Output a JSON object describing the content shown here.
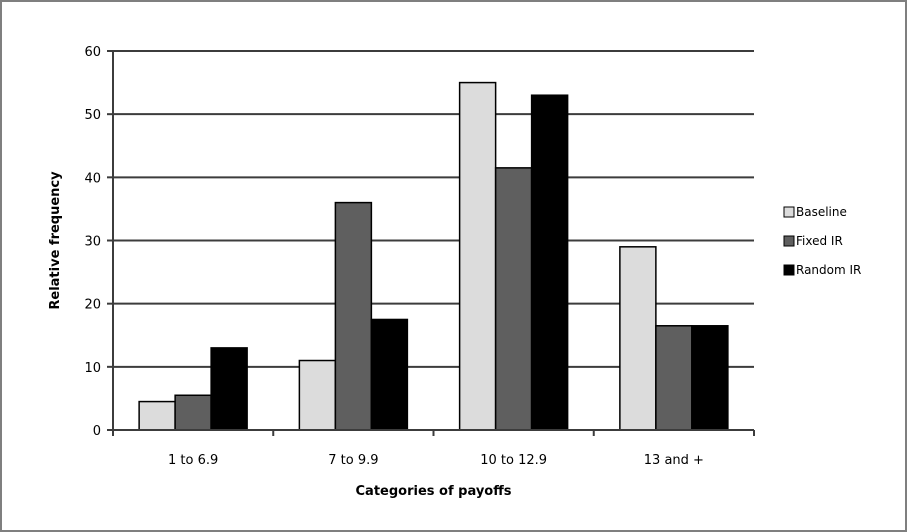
{
  "chart_data": {
    "type": "bar",
    "title": "",
    "xlabel": "Categories of payoffs",
    "ylabel": "Relative frequency",
    "ylim": [
      0,
      60
    ],
    "yticks": [
      0,
      10,
      20,
      30,
      40,
      50,
      60
    ],
    "grid": true,
    "legend_position": "right",
    "categories": [
      "1 to 6.9",
      "7 to 9.9",
      "10 to 12.9",
      "13 and +"
    ],
    "series": [
      {
        "name": "Baseline",
        "color": "#dcdcdc",
        "values": [
          4.5,
          11,
          55,
          29
        ]
      },
      {
        "name": "Fixed IR",
        "color": "#5f5f5f",
        "values": [
          5.5,
          36,
          41.5,
          16.5
        ]
      },
      {
        "name": "Random IR",
        "color": "#000000",
        "values": [
          13,
          17.5,
          53,
          16.5
        ]
      }
    ]
  }
}
